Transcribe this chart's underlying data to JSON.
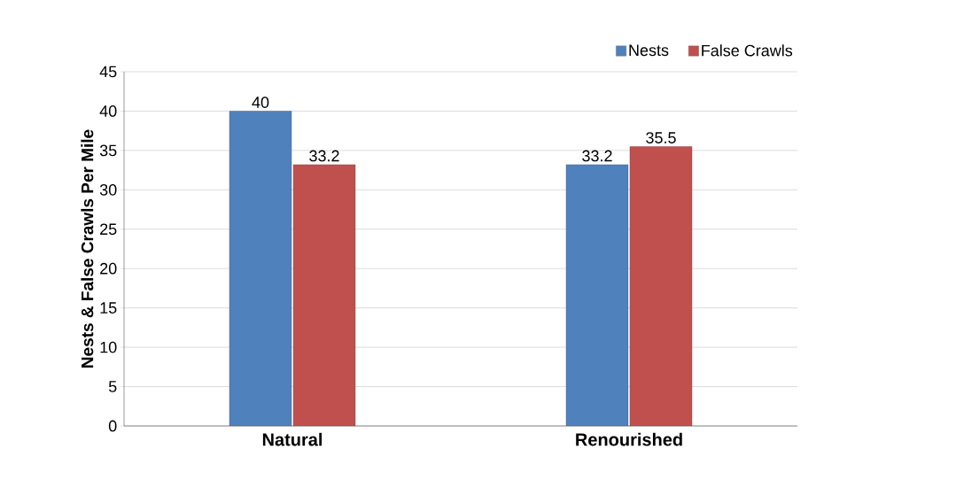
{
  "chart_data": {
    "type": "bar",
    "ylabel": "Nests & False Crawls Per Mile",
    "categories": [
      "Natural",
      "Renourished"
    ],
    "series": [
      {
        "name": "Nests",
        "color": "#4f81bd",
        "values": [
          40,
          33.2
        ]
      },
      {
        "name": "False Crawls",
        "color": "#c0504d",
        "values": [
          33.2,
          35.5
        ]
      }
    ],
    "ylim": [
      0,
      45
    ],
    "yticks": [
      0,
      5,
      10,
      15,
      20,
      25,
      30,
      35,
      40,
      45
    ],
    "grid": "y",
    "legend": "top right",
    "data_labels": true
  }
}
